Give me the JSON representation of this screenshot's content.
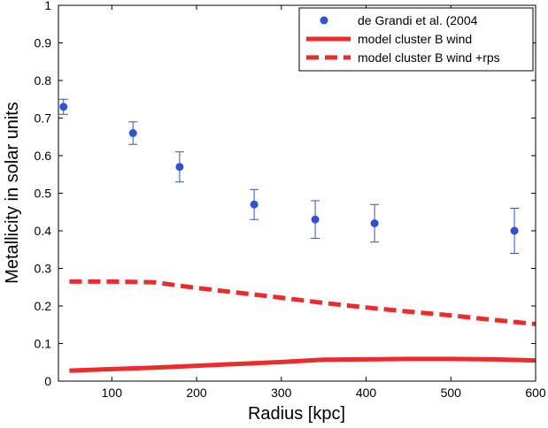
{
  "chart_data": {
    "type": "scatter",
    "title": "",
    "xlabel": "Radius [kpc]",
    "ylabel": "Metallicity in solar units",
    "xlim": [
      37,
      600
    ],
    "ylim": [
      0,
      1
    ],
    "xticks": [
      100,
      200,
      300,
      400,
      500,
      600
    ],
    "yticks": [
      0,
      0.1,
      0.2,
      0.3,
      0.4,
      0.5,
      0.6,
      0.7,
      0.8,
      0.9,
      1
    ],
    "xtick_labels": [
      "100",
      "200",
      "300",
      "400",
      "500",
      "600"
    ],
    "ytick_labels": [
      "0",
      "0.1",
      "0.2",
      "0.3",
      "0.4",
      "0.5",
      "0.6",
      "0.7",
      "0.8",
      "0.9",
      "1"
    ],
    "grid": false,
    "legend_position": "top-right",
    "colors": {
      "observations": "#3050d8",
      "model": "#ee2a2a"
    },
    "series": [
      {
        "name": "de Grandi et al. (2004",
        "kind": "errorbar",
        "x": [
          43,
          125,
          180,
          268,
          340,
          410,
          575
        ],
        "y": [
          0.73,
          0.66,
          0.57,
          0.47,
          0.43,
          0.42,
          0.4
        ],
        "ylow": [
          0.71,
          0.63,
          0.53,
          0.43,
          0.38,
          0.37,
          0.34
        ],
        "yhigh": [
          0.75,
          0.69,
          0.61,
          0.51,
          0.48,
          0.47,
          0.46
        ]
      },
      {
        "name": "model cluster B wind",
        "kind": "line-solid",
        "x": [
          50,
          100,
          150,
          200,
          250,
          300,
          350,
          400,
          450,
          500,
          550,
          600
        ],
        "y": [
          0.028,
          0.032,
          0.036,
          0.041,
          0.046,
          0.051,
          0.057,
          0.058,
          0.059,
          0.059,
          0.058,
          0.055
        ]
      },
      {
        "name": "model cluster B wind +rps",
        "kind": "line-dashed",
        "x": [
          50,
          100,
          150,
          200,
          250,
          300,
          350,
          400,
          450,
          500,
          550,
          600
        ],
        "y": [
          0.265,
          0.265,
          0.263,
          0.248,
          0.235,
          0.222,
          0.208,
          0.196,
          0.185,
          0.175,
          0.163,
          0.152
        ]
      }
    ]
  }
}
